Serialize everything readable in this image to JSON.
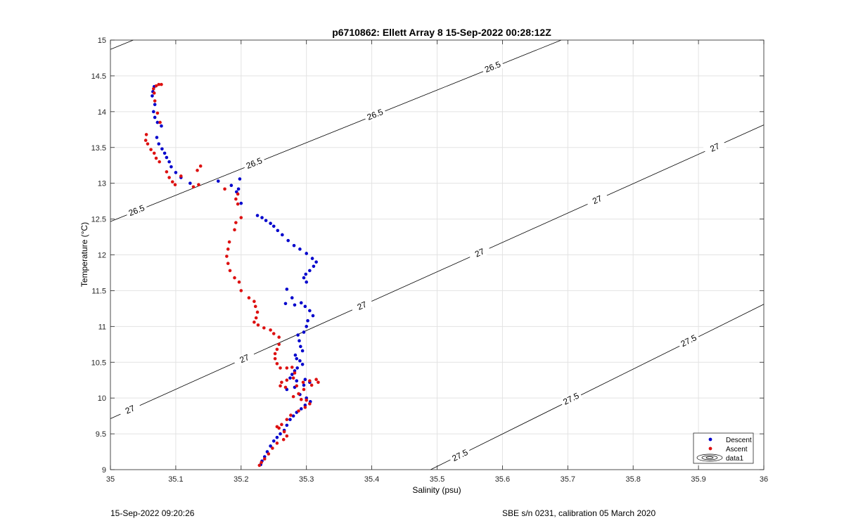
{
  "footer": {
    "left": "15-Sep-2022 09:20:26",
    "right": "SBE s/n 0231, calibration 05 March 2020"
  },
  "chart_data": {
    "type": "scatter",
    "title": "p6710862: Ellett Array 8 15-Sep-2022 00:28:12Z",
    "xlabel": "Salinity (psu)",
    "ylabel": "Temperature (°C)",
    "xlim": [
      35,
      36
    ],
    "ylim": [
      9,
      15
    ],
    "xticks": [
      35,
      35.1,
      35.2,
      35.3,
      35.4,
      35.5,
      35.6,
      35.7,
      35.8,
      35.9,
      36
    ],
    "xtick_labels": [
      "35",
      "35.1",
      "35.2",
      "35.3",
      "35.4",
      "35.5",
      "35.6",
      "35.7",
      "35.8",
      "35.9",
      "36"
    ],
    "yticks": [
      9,
      9.5,
      10,
      10.5,
      11,
      11.5,
      12,
      12.5,
      13,
      13.5,
      14,
      14.5,
      15
    ],
    "ytick_labels": [
      "9",
      "9.5",
      "10",
      "10.5",
      "11",
      "11.5",
      "12",
      "12.5",
      "13",
      "13.5",
      "14",
      "14.5",
      "15"
    ],
    "grid": true,
    "legend_position": "bottom-right",
    "series": [
      {
        "name": "Descent",
        "color": "#0000cc",
        "points": [
          [
            35.067,
            14.35
          ],
          [
            35.065,
            14.28
          ],
          [
            35.064,
            14.22
          ],
          [
            35.068,
            14.1
          ],
          [
            35.066,
            14.0
          ],
          [
            35.068,
            13.92
          ],
          [
            35.072,
            13.85
          ],
          [
            35.078,
            13.8
          ],
          [
            35.071,
            13.64
          ],
          [
            35.074,
            13.55
          ],
          [
            35.079,
            13.48
          ],
          [
            35.083,
            13.42
          ],
          [
            35.086,
            13.36
          ],
          [
            35.09,
            13.3
          ],
          [
            35.093,
            13.23
          ],
          [
            35.1,
            13.15
          ],
          [
            35.108,
            13.08
          ],
          [
            35.122,
            13.0
          ],
          [
            35.165,
            13.03
          ],
          [
            35.185,
            12.97
          ],
          [
            35.196,
            12.92
          ],
          [
            35.198,
            13.06
          ],
          [
            35.193,
            12.88
          ],
          [
            35.2,
            12.72
          ],
          [
            35.225,
            12.55
          ],
          [
            35.232,
            12.52
          ],
          [
            35.238,
            12.48
          ],
          [
            35.245,
            12.44
          ],
          [
            35.25,
            12.4
          ],
          [
            35.256,
            12.34
          ],
          [
            35.263,
            12.28
          ],
          [
            35.272,
            12.2
          ],
          [
            35.281,
            12.13
          ],
          [
            35.29,
            12.08
          ],
          [
            35.3,
            12.02
          ],
          [
            35.309,
            11.95
          ],
          [
            35.315,
            11.9
          ],
          [
            35.311,
            11.84
          ],
          [
            35.305,
            11.78
          ],
          [
            35.299,
            11.73
          ],
          [
            35.296,
            11.68
          ],
          [
            35.3,
            11.62
          ],
          [
            35.27,
            11.52
          ],
          [
            35.278,
            11.4
          ],
          [
            35.268,
            11.32
          ],
          [
            35.282,
            11.3
          ],
          [
            35.292,
            11.33
          ],
          [
            35.298,
            11.28
          ],
          [
            35.305,
            11.22
          ],
          [
            35.31,
            11.15
          ],
          [
            35.302,
            11.08
          ],
          [
            35.3,
            11.0
          ],
          [
            35.296,
            10.92
          ],
          [
            35.287,
            10.88
          ],
          [
            35.289,
            10.8
          ],
          [
            35.291,
            10.72
          ],
          [
            35.294,
            10.66
          ],
          [
            35.283,
            10.6
          ],
          [
            35.285,
            10.55
          ],
          [
            35.29,
            10.52
          ],
          [
            35.294,
            10.47
          ],
          [
            35.286,
            10.42
          ],
          [
            35.282,
            10.38
          ],
          [
            35.278,
            10.33
          ],
          [
            35.275,
            10.28
          ],
          [
            35.285,
            10.24
          ],
          [
            35.298,
            10.26
          ],
          [
            35.305,
            10.22
          ],
          [
            35.296,
            10.18
          ],
          [
            35.282,
            10.15
          ],
          [
            35.27,
            10.12
          ],
          [
            35.29,
            10.05
          ],
          [
            35.3,
            10.0
          ],
          [
            35.306,
            9.95
          ],
          [
            35.298,
            9.9
          ],
          [
            35.292,
            9.85
          ],
          [
            35.285,
            9.8
          ],
          [
            35.28,
            9.75
          ],
          [
            35.275,
            9.7
          ],
          [
            35.27,
            9.62
          ],
          [
            35.266,
            9.55
          ],
          [
            35.26,
            9.5
          ],
          [
            35.255,
            9.45
          ],
          [
            35.25,
            9.4
          ],
          [
            35.245,
            9.33
          ],
          [
            35.24,
            9.25
          ],
          [
            35.236,
            9.18
          ],
          [
            35.232,
            9.12
          ],
          [
            35.23,
            9.07
          ]
        ]
      },
      {
        "name": "Ascent",
        "color": "#dd1111",
        "points": [
          [
            35.078,
            14.38
          ],
          [
            35.074,
            14.38
          ],
          [
            35.07,
            14.36
          ],
          [
            35.066,
            14.32
          ],
          [
            35.067,
            14.26
          ],
          [
            35.068,
            14.15
          ],
          [
            35.072,
            13.98
          ],
          [
            35.076,
            13.85
          ],
          [
            35.055,
            13.68
          ],
          [
            35.054,
            13.6
          ],
          [
            35.057,
            13.55
          ],
          [
            35.062,
            13.47
          ],
          [
            35.067,
            13.42
          ],
          [
            35.07,
            13.35
          ],
          [
            35.075,
            13.3
          ],
          [
            35.086,
            13.16
          ],
          [
            35.09,
            13.08
          ],
          [
            35.095,
            13.02
          ],
          [
            35.099,
            12.98
          ],
          [
            35.108,
            13.1
          ],
          [
            35.127,
            12.95
          ],
          [
            35.135,
            12.98
          ],
          [
            35.138,
            13.24
          ],
          [
            35.133,
            13.18
          ],
          [
            35.175,
            12.92
          ],
          [
            35.195,
            12.85
          ],
          [
            35.192,
            12.78
          ],
          [
            35.195,
            12.71
          ],
          [
            35.2,
            12.52
          ],
          [
            35.192,
            12.45
          ],
          [
            35.19,
            12.35
          ],
          [
            35.182,
            12.18
          ],
          [
            35.18,
            12.08
          ],
          [
            35.178,
            11.98
          ],
          [
            35.18,
            11.88
          ],
          [
            35.183,
            11.78
          ],
          [
            35.19,
            11.68
          ],
          [
            35.197,
            11.62
          ],
          [
            35.2,
            11.5
          ],
          [
            35.212,
            11.4
          ],
          [
            35.22,
            11.35
          ],
          [
            35.222,
            11.28
          ],
          [
            35.225,
            11.2
          ],
          [
            35.223,
            11.12
          ],
          [
            35.22,
            11.06
          ],
          [
            35.226,
            11.02
          ],
          [
            35.235,
            10.98
          ],
          [
            35.245,
            10.95
          ],
          [
            35.25,
            10.9
          ],
          [
            35.258,
            10.85
          ],
          [
            35.258,
            10.75
          ],
          [
            35.255,
            10.68
          ],
          [
            35.252,
            10.62
          ],
          [
            35.252,
            10.55
          ],
          [
            35.255,
            10.48
          ],
          [
            35.26,
            10.42
          ],
          [
            35.27,
            10.42
          ],
          [
            35.278,
            10.43
          ],
          [
            35.282,
            10.35
          ],
          [
            35.28,
            10.28
          ],
          [
            35.27,
            10.25
          ],
          [
            35.262,
            10.22
          ],
          [
            35.26,
            10.17
          ],
          [
            35.268,
            10.15
          ],
          [
            35.285,
            10.17
          ],
          [
            35.295,
            10.22
          ],
          [
            35.305,
            10.24
          ],
          [
            35.315,
            10.26
          ],
          [
            35.318,
            10.22
          ],
          [
            35.308,
            10.18
          ],
          [
            35.296,
            10.12
          ],
          [
            35.288,
            10.06
          ],
          [
            35.28,
            10.02
          ],
          [
            35.292,
            9.98
          ],
          [
            35.3,
            9.97
          ],
          [
            35.305,
            9.92
          ],
          [
            35.298,
            9.87
          ],
          [
            35.288,
            9.82
          ],
          [
            35.276,
            9.76
          ],
          [
            35.27,
            9.7
          ],
          [
            35.262,
            9.63
          ],
          [
            35.255,
            9.6
          ],
          [
            35.258,
            9.58
          ],
          [
            35.266,
            9.53
          ],
          [
            35.27,
            9.47
          ],
          [
            35.265,
            9.42
          ],
          [
            35.255,
            9.37
          ],
          [
            35.248,
            9.3
          ],
          [
            35.242,
            9.22
          ],
          [
            35.236,
            9.15
          ],
          [
            35.231,
            9.1
          ],
          [
            35.228,
            9.06
          ]
        ]
      }
    ],
    "isopycnals": [
      {
        "sigma": "26.5",
        "p1": [
          35.0,
          12.465
        ],
        "p2": [
          35.69,
          15.0
        ],
        "labels": [
          [
            35.04,
            12.62
          ],
          [
            35.22,
            13.28
          ],
          [
            35.405,
            13.96
          ],
          [
            35.585,
            14.625
          ]
        ]
      },
      {
        "sigma": "27",
        "p1": [
          35.0,
          9.712
        ],
        "p2": [
          36.0,
          13.815
        ],
        "labels": [
          [
            35.03,
            9.84
          ],
          [
            35.205,
            10.55
          ],
          [
            35.385,
            11.29
          ],
          [
            35.565,
            12.03
          ],
          [
            35.745,
            12.77
          ],
          [
            35.925,
            13.5
          ]
        ]
      },
      {
        "sigma": "27.5",
        "p1": [
          35.49,
          9.0
        ],
        "p2": [
          36.0,
          11.31
        ],
        "labels": [
          [
            35.535,
            9.2
          ],
          [
            35.705,
            9.99
          ],
          [
            35.885,
            10.8
          ]
        ]
      },
      {
        "sigma": "",
        "p1": [
          35.0,
          14.87
        ],
        "p2": [
          35.035,
          15.0
        ],
        "labels": []
      }
    ],
    "legend": [
      "Descent",
      "Ascent",
      "data1"
    ]
  }
}
